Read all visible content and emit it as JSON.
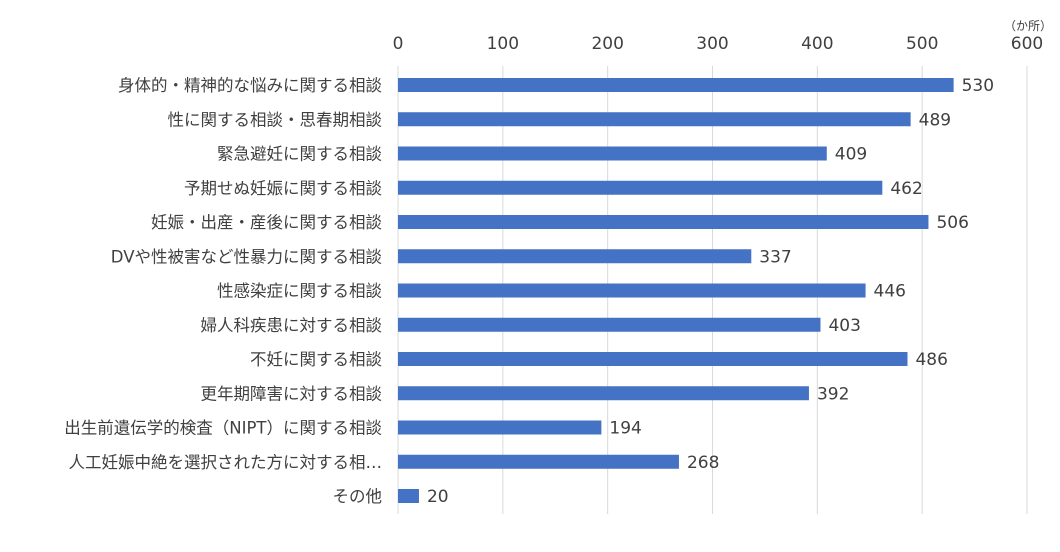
{
  "chart_data": {
    "type": "bar",
    "orientation": "horizontal",
    "unit": "（か所）",
    "xlim": [
      0,
      600
    ],
    "x_ticks": [
      "0",
      "100",
      "200",
      "300",
      "400",
      "500",
      "600"
    ],
    "x_axis_position": "top",
    "grid": "vertical",
    "bar_color": "#4472C4",
    "categories": [
      "身体的・精神的な悩みに関する相談",
      "性に関する相談・思春期相談",
      "緊急避妊に関する相談",
      "予期せぬ妊娠に関する相談",
      "妊娠・出産・産後に関する相談",
      "DVや性被害など性暴力に関する相談",
      "性感染症に関する相談",
      "婦人科疾患に対する相談",
      "不妊に関する相談",
      "更年期障害に対する相談",
      "出生前遺伝学的検査（NIPT）に関する相談",
      "人工妊娠中絶を選択された方に対する相…",
      "その他"
    ],
    "values": [
      530,
      489,
      409,
      462,
      506,
      337,
      446,
      403,
      486,
      392,
      194,
      268,
      20
    ]
  }
}
